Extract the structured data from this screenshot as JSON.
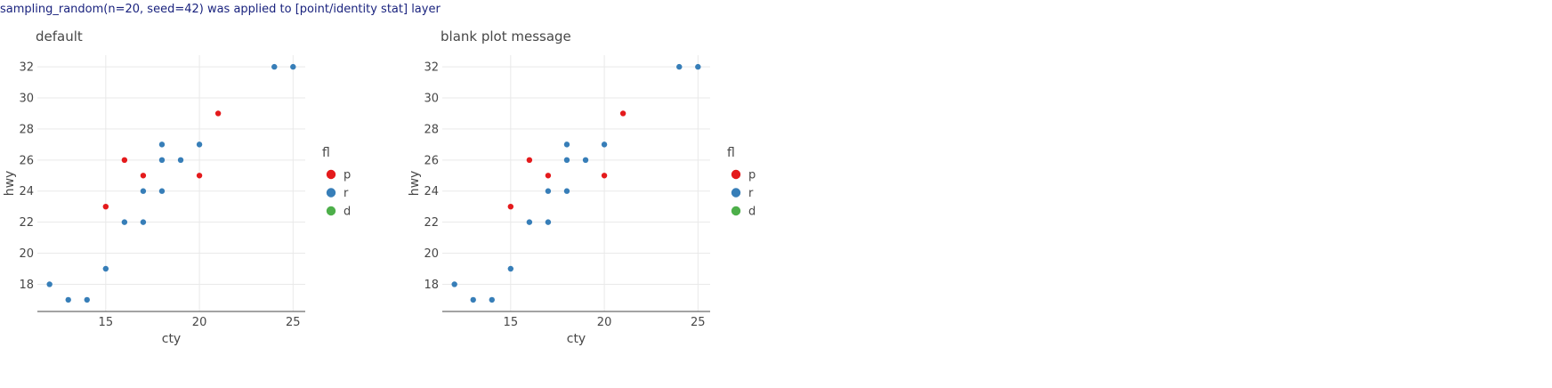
{
  "notice": "sampling_random(n=20, seed=42) was applied to [point/identity stat] layer",
  "colors": {
    "p": "#e41a1c",
    "r": "#377eb8",
    "d": "#4daf4a"
  },
  "chart_data": [
    {
      "type": "scatter",
      "title": "default",
      "xlabel": "cty",
      "ylabel": "hwy",
      "xlim": [
        11.35,
        25.65
      ],
      "ylim": [
        16.25,
        32.75
      ],
      "xticks": [
        15,
        20,
        25
      ],
      "yticks": [
        18,
        20,
        22,
        24,
        26,
        28,
        30,
        32
      ],
      "grid": true,
      "legend": {
        "title": "fl",
        "position": "right",
        "entries": [
          "p",
          "r",
          "d"
        ]
      },
      "points": [
        {
          "x": 12,
          "y": 18,
          "fl": "r"
        },
        {
          "x": 13,
          "y": 17,
          "fl": "r"
        },
        {
          "x": 14,
          "y": 17,
          "fl": "r"
        },
        {
          "x": 15,
          "y": 19,
          "fl": "r"
        },
        {
          "x": 15,
          "y": 23,
          "fl": "p"
        },
        {
          "x": 16,
          "y": 22,
          "fl": "r"
        },
        {
          "x": 16,
          "y": 26,
          "fl": "p"
        },
        {
          "x": 17,
          "y": 22,
          "fl": "r"
        },
        {
          "x": 17,
          "y": 24,
          "fl": "r"
        },
        {
          "x": 17,
          "y": 25,
          "fl": "p"
        },
        {
          "x": 18,
          "y": 24,
          "fl": "r"
        },
        {
          "x": 18,
          "y": 26,
          "fl": "r"
        },
        {
          "x": 18,
          "y": 27,
          "fl": "r"
        },
        {
          "x": 19,
          "y": 26,
          "fl": "r"
        },
        {
          "x": 20,
          "y": 25,
          "fl": "p"
        },
        {
          "x": 20,
          "y": 27,
          "fl": "r"
        },
        {
          "x": 21,
          "y": 29,
          "fl": "p"
        },
        {
          "x": 24,
          "y": 32,
          "fl": "r"
        },
        {
          "x": 25,
          "y": 32,
          "fl": "r"
        }
      ]
    },
    {
      "type": "scatter",
      "title": "blank plot message",
      "xlabel": "cty",
      "ylabel": "hwy",
      "xlim": [
        11.35,
        25.65
      ],
      "ylim": [
        16.25,
        32.75
      ],
      "xticks": [
        15,
        20,
        25
      ],
      "yticks": [
        18,
        20,
        22,
        24,
        26,
        28,
        30,
        32
      ],
      "grid": true,
      "legend": {
        "title": "fl",
        "position": "right",
        "entries": [
          "p",
          "r",
          "d"
        ]
      },
      "points": [
        {
          "x": 12,
          "y": 18,
          "fl": "r"
        },
        {
          "x": 13,
          "y": 17,
          "fl": "r"
        },
        {
          "x": 14,
          "y": 17,
          "fl": "r"
        },
        {
          "x": 15,
          "y": 19,
          "fl": "r"
        },
        {
          "x": 15,
          "y": 23,
          "fl": "p"
        },
        {
          "x": 16,
          "y": 22,
          "fl": "r"
        },
        {
          "x": 16,
          "y": 26,
          "fl": "p"
        },
        {
          "x": 17,
          "y": 22,
          "fl": "r"
        },
        {
          "x": 17,
          "y": 24,
          "fl": "r"
        },
        {
          "x": 17,
          "y": 25,
          "fl": "p"
        },
        {
          "x": 18,
          "y": 24,
          "fl": "r"
        },
        {
          "x": 18,
          "y": 26,
          "fl": "r"
        },
        {
          "x": 18,
          "y": 27,
          "fl": "r"
        },
        {
          "x": 19,
          "y": 26,
          "fl": "r"
        },
        {
          "x": 20,
          "y": 25,
          "fl": "p"
        },
        {
          "x": 20,
          "y": 27,
          "fl": "r"
        },
        {
          "x": 21,
          "y": 29,
          "fl": "p"
        },
        {
          "x": 24,
          "y": 32,
          "fl": "r"
        },
        {
          "x": 25,
          "y": 32,
          "fl": "r"
        }
      ]
    }
  ]
}
